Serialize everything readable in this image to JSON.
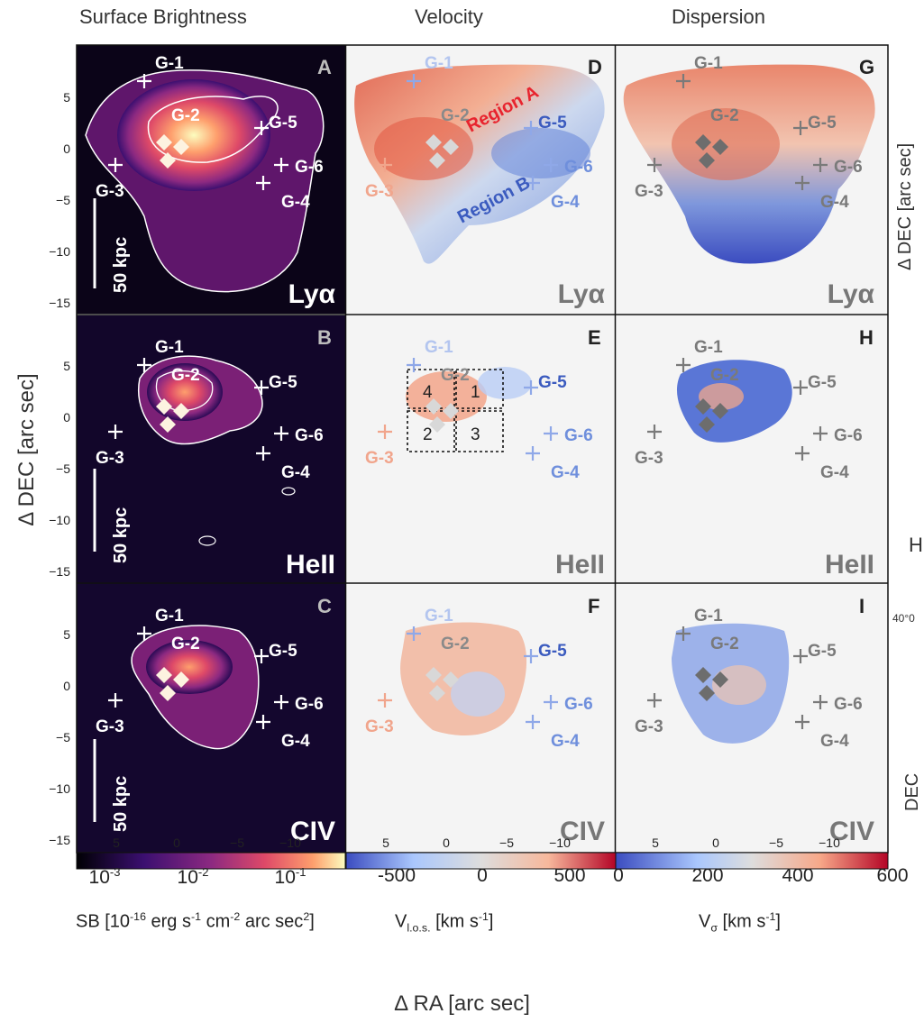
{
  "column_titles": [
    "Surface Brightness",
    "Velocity",
    "Dispersion"
  ],
  "panel_letters": [
    "A",
    "B",
    "C",
    "D",
    "E",
    "F",
    "G",
    "H",
    "I"
  ],
  "row_lines": [
    "Lyα",
    "HeII",
    "CIV"
  ],
  "scalebar_label": "50 kpc",
  "galaxy_labels": [
    "G-1",
    "G-2",
    "G-3",
    "G-4",
    "G-5",
    "G-6"
  ],
  "region_labels": [
    "Region A",
    "Region B"
  ],
  "box_numbers": [
    "4",
    "1",
    "2",
    "3"
  ],
  "y_axis_label": "Δ DEC [arc sec]",
  "x_axis_label": "Δ RA [arc sec]",
  "y_ticks": [
    "5",
    "0",
    "−5",
    "−10",
    "−15"
  ],
  "x_ticks": [
    "5",
    "0",
    "−5",
    "−10"
  ],
  "colorbars": {
    "sb": {
      "ticks": [
        "10-3",
        "10-2",
        "10-1"
      ],
      "label": "SB [10-16 erg s-1 cm-2 arc sec2]"
    },
    "vel": {
      "ticks": [
        "-500",
        "0",
        "500"
      ],
      "label": "Vl.o.s. [km s-1]"
    },
    "disp": {
      "ticks": [
        "0",
        "200",
        "400",
        "600"
      ],
      "label": "Vσ [km s-1]"
    }
  },
  "colors": {
    "sb_cmap": [
      "#000004",
      "#3b0f70",
      "#8c2981",
      "#de4968",
      "#fe9f6d",
      "#fcfdbf"
    ],
    "vel_cmap": [
      "#3b4cc0",
      "#aac7fd",
      "#dddddd",
      "#f7b89c",
      "#b40426"
    ],
    "gray_marker": "#7a7a7a",
    "blue_label": "#3b5bbf",
    "red_label": "#e8242e"
  },
  "right_edge_fragments": [
    "Δ DEC [arc sec]",
    "H",
    "40°0",
    "DEC"
  ]
}
